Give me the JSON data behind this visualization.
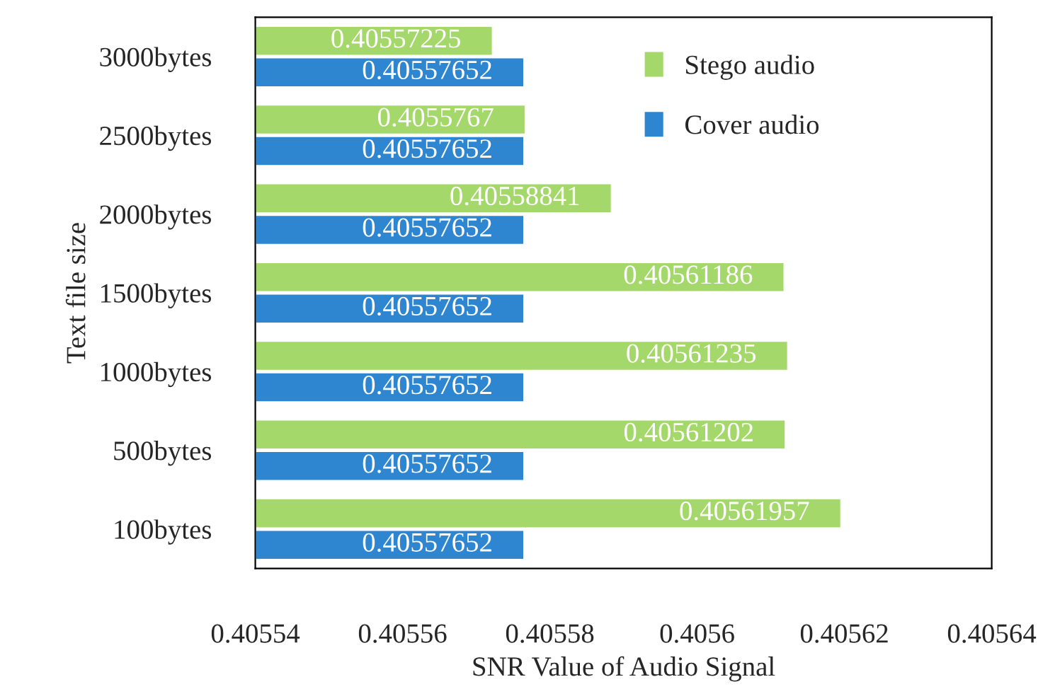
{
  "chart_data": {
    "type": "bar",
    "orientation": "horizontal",
    "xlabel": "SNR Value of Audio Signal",
    "ylabel": "Text file size",
    "categories": [
      "3000bytes",
      "2500bytes",
      "2000bytes",
      "1500bytes",
      "1000bytes",
      "500bytes",
      "100bytes"
    ],
    "series": [
      {
        "name": "Stego audio",
        "color": "#a5d86a",
        "values": [
          0.40557225,
          0.4055767,
          0.40558841,
          0.40561186,
          0.40561235,
          0.40561202,
          0.40561957
        ]
      },
      {
        "name": "Cover audio",
        "color": "#2e86d1",
        "values": [
          0.40557652,
          0.40557652,
          0.40557652,
          0.40557652,
          0.40557652,
          0.40557652,
          0.40557652
        ]
      }
    ],
    "xlim": [
      0.40554,
      0.40564
    ],
    "xticks": [
      0.40554,
      0.40556,
      0.40558,
      0.4056,
      0.40562,
      0.40564
    ],
    "data_labels": true,
    "legend": "top right",
    "grid": false
  }
}
